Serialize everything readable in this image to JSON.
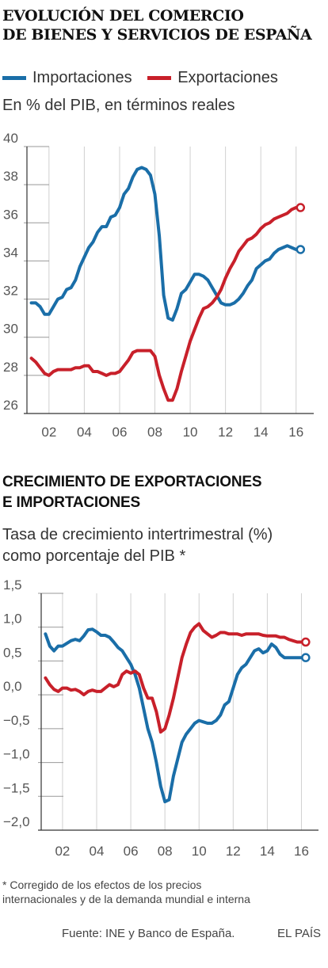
{
  "chart1": {
    "title_line1": "EVOLUCIÓN DEL COMERCIO",
    "title_line2": "DE BIENES Y SERVICIOS DE ESPAÑA",
    "legend": [
      "Importaciones",
      "Exportaciones"
    ],
    "subtitle": "En % del PIB, en términos reales"
  },
  "chart2": {
    "title_line1": "CRECIMIENTO DE EXPORTACIONES",
    "title_line2": "E IMPORTACIONES",
    "subtitle_line1": "Tasa de crecimiento intertrimestral (%)",
    "subtitle_line2": "como porcentaje del PIB *"
  },
  "footer": {
    "footnote_line1": "* Corregido de los efectos de los precios",
    "footnote_line2": "internacionales y de la demanda mundial e interna",
    "source": "Fuente: INE y Banco de España.",
    "brand": "EL PAÍS"
  },
  "colors": {
    "imports": "#1a6ea8",
    "exports": "#c8202a",
    "grid": "#d0d0d0",
    "axis": "#333333"
  },
  "chart_data": [
    {
      "type": "line",
      "title": "EVOLUCIÓN DEL COMERCIO DE BIENES Y SERVICIOS DE ESPAÑA",
      "ylabel": "En % del PIB, en términos reales",
      "ylim": [
        26,
        40
      ],
      "yticks": [
        26,
        28,
        30,
        32,
        34,
        36,
        38,
        40
      ],
      "xlim": [
        2000.75,
        2017.0
      ],
      "xticks": [
        2002,
        2004,
        2006,
        2008,
        2010,
        2012,
        2014,
        2016
      ],
      "xticklabels": [
        "02",
        "04",
        "06",
        "08",
        "10",
        "12",
        "14",
        "16"
      ],
      "grid": "vertical",
      "legend": "top",
      "series": [
        {
          "name": "Importaciones",
          "color": "#1a6ea8",
          "x": [
            2001.0,
            2001.25,
            2001.5,
            2001.75,
            2002.0,
            2002.25,
            2002.5,
            2002.75,
            2003.0,
            2003.25,
            2003.5,
            2003.75,
            2004.0,
            2004.25,
            2004.5,
            2004.75,
            2005.0,
            2005.25,
            2005.5,
            2005.75,
            2006.0,
            2006.25,
            2006.5,
            2006.75,
            2007.0,
            2007.25,
            2007.5,
            2007.75,
            2008.0,
            2008.25,
            2008.5,
            2008.75,
            2009.0,
            2009.25,
            2009.5,
            2009.75,
            2010.0,
            2010.25,
            2010.5,
            2010.75,
            2011.0,
            2011.25,
            2011.5,
            2011.75,
            2012.0,
            2012.25,
            2012.5,
            2012.75,
            2013.0,
            2013.25,
            2013.5,
            2013.75,
            2014.0,
            2014.25,
            2014.5,
            2014.75,
            2015.0,
            2015.25,
            2015.5,
            2015.75,
            2016.0,
            2016.25
          ],
          "y": [
            31.8,
            31.8,
            31.6,
            31.2,
            31.2,
            31.6,
            32.0,
            32.1,
            32.5,
            32.6,
            33.0,
            33.7,
            34.2,
            34.7,
            35.0,
            35.5,
            35.8,
            35.8,
            36.3,
            36.4,
            36.8,
            37.5,
            37.8,
            38.4,
            38.8,
            38.9,
            38.8,
            38.5,
            37.5,
            35.3,
            32.2,
            31.0,
            30.9,
            31.5,
            32.3,
            32.5,
            32.9,
            33.3,
            33.3,
            33.2,
            33.0,
            32.6,
            32.2,
            31.8,
            31.7,
            31.7,
            31.8,
            32.0,
            32.3,
            32.7,
            33.0,
            33.6,
            33.8,
            34.0,
            34.1,
            34.4,
            34.6,
            34.7,
            34.8,
            34.7,
            34.6,
            34.6
          ]
        },
        {
          "name": "Exportaciones",
          "color": "#c8202a",
          "x": [
            2001.0,
            2001.25,
            2001.5,
            2001.75,
            2002.0,
            2002.25,
            2002.5,
            2002.75,
            2003.0,
            2003.25,
            2003.5,
            2003.75,
            2004.0,
            2004.25,
            2004.5,
            2004.75,
            2005.0,
            2005.25,
            2005.5,
            2005.75,
            2006.0,
            2006.25,
            2006.5,
            2006.75,
            2007.0,
            2007.25,
            2007.5,
            2007.75,
            2008.0,
            2008.25,
            2008.5,
            2008.75,
            2009.0,
            2009.25,
            2009.5,
            2009.75,
            2010.0,
            2010.25,
            2010.5,
            2010.75,
            2011.0,
            2011.25,
            2011.5,
            2011.75,
            2012.0,
            2012.25,
            2012.5,
            2012.75,
            2013.0,
            2013.25,
            2013.5,
            2013.75,
            2014.0,
            2014.25,
            2014.5,
            2014.75,
            2015.0,
            2015.25,
            2015.5,
            2015.75,
            2016.0,
            2016.25
          ],
          "y": [
            28.9,
            28.7,
            28.4,
            28.1,
            28.0,
            28.2,
            28.3,
            28.3,
            28.3,
            28.3,
            28.4,
            28.4,
            28.5,
            28.5,
            28.2,
            28.2,
            28.1,
            28.0,
            28.1,
            28.1,
            28.2,
            28.5,
            28.8,
            29.2,
            29.3,
            29.3,
            29.3,
            29.3,
            29.0,
            28.0,
            27.3,
            26.7,
            26.7,
            27.3,
            28.2,
            29.0,
            29.8,
            30.4,
            31.0,
            31.5,
            31.6,
            31.8,
            32.1,
            32.5,
            33.1,
            33.6,
            34.0,
            34.5,
            34.8,
            35.1,
            35.2,
            35.4,
            35.7,
            35.9,
            36.0,
            36.2,
            36.3,
            36.4,
            36.5,
            36.7,
            36.8,
            36.8
          ]
        }
      ]
    },
    {
      "type": "line",
      "title": "CRECIMIENTO DE EXPORTACIONES E IMPORTACIONES",
      "ylabel": "Tasa de crecimiento intertrimestral (%) como porcentaje del PIB *",
      "ylim": [
        -2.0,
        1.5
      ],
      "yticks": [
        -2.0,
        -1.5,
        -1.0,
        -0.5,
        0.0,
        0.5,
        1.0,
        1.5
      ],
      "yticklabels": [
        "−2,0",
        "−1,5",
        "−1,0",
        "−0,5",
        "0,0",
        "0,5",
        "1,0",
        "1,5"
      ],
      "xlim": [
        2000.75,
        2017.0
      ],
      "xticks": [
        2002,
        2004,
        2006,
        2008,
        2010,
        2012,
        2014,
        2016
      ],
      "xticklabels": [
        "02",
        "04",
        "06",
        "08",
        "10",
        "12",
        "14",
        "16"
      ],
      "grid": "vertical",
      "series": [
        {
          "name": "Importaciones",
          "color": "#1a6ea8",
          "x": [
            2001.0,
            2001.25,
            2001.5,
            2001.75,
            2002.0,
            2002.25,
            2002.5,
            2002.75,
            2003.0,
            2003.25,
            2003.5,
            2003.75,
            2004.0,
            2004.25,
            2004.5,
            2004.75,
            2005.0,
            2005.25,
            2005.5,
            2005.75,
            2006.0,
            2006.25,
            2006.5,
            2006.75,
            2007.0,
            2007.25,
            2007.5,
            2007.75,
            2008.0,
            2008.25,
            2008.5,
            2008.75,
            2009.0,
            2009.25,
            2009.5,
            2009.75,
            2010.0,
            2010.25,
            2010.5,
            2010.75,
            2011.0,
            2011.25,
            2011.5,
            2011.75,
            2012.0,
            2012.25,
            2012.5,
            2012.75,
            2013.0,
            2013.25,
            2013.5,
            2013.75,
            2014.0,
            2014.25,
            2014.5,
            2014.75,
            2015.0,
            2015.25,
            2015.5,
            2015.75,
            2016.0,
            2016.25
          ],
          "y": [
            0.9,
            0.72,
            0.65,
            0.72,
            0.72,
            0.76,
            0.8,
            0.82,
            0.8,
            0.87,
            0.96,
            0.97,
            0.93,
            0.88,
            0.88,
            0.85,
            0.78,
            0.7,
            0.65,
            0.55,
            0.45,
            0.3,
            0.1,
            -0.2,
            -0.5,
            -0.7,
            -1.0,
            -1.35,
            -1.58,
            -1.55,
            -1.2,
            -0.95,
            -0.7,
            -0.58,
            -0.5,
            -0.42,
            -0.38,
            -0.4,
            -0.42,
            -0.42,
            -0.38,
            -0.3,
            -0.15,
            -0.1,
            0.1,
            0.3,
            0.4,
            0.45,
            0.55,
            0.65,
            0.68,
            0.62,
            0.65,
            0.75,
            0.7,
            0.6,
            0.55,
            0.55,
            0.55,
            0.55,
            0.55,
            0.55
          ]
        },
        {
          "name": "Exportaciones",
          "color": "#c8202a",
          "x": [
            2001.0,
            2001.25,
            2001.5,
            2001.75,
            2002.0,
            2002.25,
            2002.5,
            2002.75,
            2003.0,
            2003.25,
            2003.5,
            2003.75,
            2004.0,
            2004.25,
            2004.5,
            2004.75,
            2005.0,
            2005.25,
            2005.5,
            2005.75,
            2006.0,
            2006.25,
            2006.5,
            2006.75,
            2007.0,
            2007.25,
            2007.5,
            2007.75,
            2008.0,
            2008.25,
            2008.5,
            2008.75,
            2009.0,
            2009.25,
            2009.5,
            2009.75,
            2010.0,
            2010.25,
            2010.5,
            2010.75,
            2011.0,
            2011.25,
            2011.5,
            2011.75,
            2012.0,
            2012.25,
            2012.5,
            2012.75,
            2013.0,
            2013.25,
            2013.5,
            2013.75,
            2014.0,
            2014.25,
            2014.5,
            2014.75,
            2015.0,
            2015.25,
            2015.5,
            2015.75,
            2016.0,
            2016.25
          ],
          "y": [
            0.25,
            0.15,
            0.08,
            0.05,
            0.1,
            0.1,
            0.07,
            0.08,
            0.05,
            0.0,
            0.05,
            0.07,
            0.05,
            0.05,
            0.1,
            0.15,
            0.12,
            0.15,
            0.3,
            0.35,
            0.32,
            0.35,
            0.3,
            0.1,
            -0.05,
            -0.05,
            -0.25,
            -0.55,
            -0.5,
            -0.3,
            -0.05,
            0.25,
            0.55,
            0.75,
            0.92,
            1.0,
            1.05,
            0.95,
            0.9,
            0.85,
            0.88,
            0.92,
            0.92,
            0.9,
            0.9,
            0.9,
            0.88,
            0.9,
            0.9,
            0.9,
            0.9,
            0.88,
            0.87,
            0.87,
            0.87,
            0.85,
            0.85,
            0.82,
            0.8,
            0.78,
            0.78,
            0.78
          ]
        }
      ]
    }
  ]
}
